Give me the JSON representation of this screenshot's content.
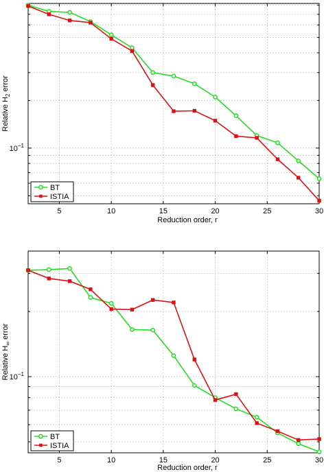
{
  "chart_data": [
    {
      "type": "line",
      "xlabel": "Reduction order, r",
      "ylabel_prefix": "Relative H",
      "ylabel_sub": "2",
      "ylabel_suffix": " error",
      "yscale": "log",
      "xlim": [
        2,
        30
      ],
      "ylim": [
        0.0445,
        0.82
      ],
      "x_ticks": [
        5,
        10,
        15,
        20,
        25,
        30
      ],
      "y_tick_labels": [
        {
          "base": "10",
          "exp": "−1",
          "value": 0.1
        }
      ],
      "grid": true,
      "legend_position": "bottom-left",
      "x": [
        2,
        4,
        6,
        8,
        10,
        12,
        14,
        16,
        18,
        20,
        22,
        24,
        26,
        28,
        30
      ],
      "series": [
        {
          "name": "BT",
          "color": "#22dd22",
          "marker": "circle",
          "values": [
            0.8,
            0.73,
            0.72,
            0.63,
            0.52,
            0.43,
            0.3,
            0.285,
            0.255,
            0.21,
            0.16,
            0.12,
            0.108,
            0.083,
            0.064
          ]
        },
        {
          "name": "ISTIA",
          "color": "#dd1111",
          "marker": "square",
          "values": [
            0.79,
            0.7,
            0.64,
            0.62,
            0.49,
            0.41,
            0.25,
            0.171,
            0.172,
            0.149,
            0.119,
            0.116,
            0.085,
            0.065,
            0.0465
          ]
        }
      ]
    },
    {
      "type": "line",
      "xlabel": "Reduction order, r",
      "ylabel_prefix": "Relative H",
      "ylabel_sub": "∞",
      "ylabel_suffix": " error",
      "yscale": "log",
      "xlim": [
        2,
        30
      ],
      "ylim": [
        0.0445,
        0.38
      ],
      "x_ticks": [
        5,
        10,
        15,
        20,
        25,
        30
      ],
      "y_tick_labels": [
        {
          "base": "10",
          "exp": "−1",
          "value": 0.1
        }
      ],
      "grid": true,
      "legend_position": "bottom-left",
      "x": [
        2,
        4,
        6,
        8,
        10,
        12,
        14,
        16,
        18,
        20,
        22,
        24,
        26,
        28,
        30
      ],
      "series": [
        {
          "name": "BT",
          "color": "#22dd22",
          "marker": "circle",
          "values": [
            0.31,
            0.312,
            0.316,
            0.232,
            0.218,
            0.165,
            0.164,
            0.125,
            0.091,
            0.08,
            0.071,
            0.065,
            0.055,
            0.049,
            0.045
          ]
        },
        {
          "name": "ISTIA",
          "color": "#dd1111",
          "marker": "square",
          "values": [
            0.31,
            0.284,
            0.276,
            0.253,
            0.205,
            0.204,
            0.226,
            0.22,
            0.12,
            0.078,
            0.083,
            0.061,
            0.056,
            0.051,
            0.0515
          ]
        }
      ]
    }
  ]
}
